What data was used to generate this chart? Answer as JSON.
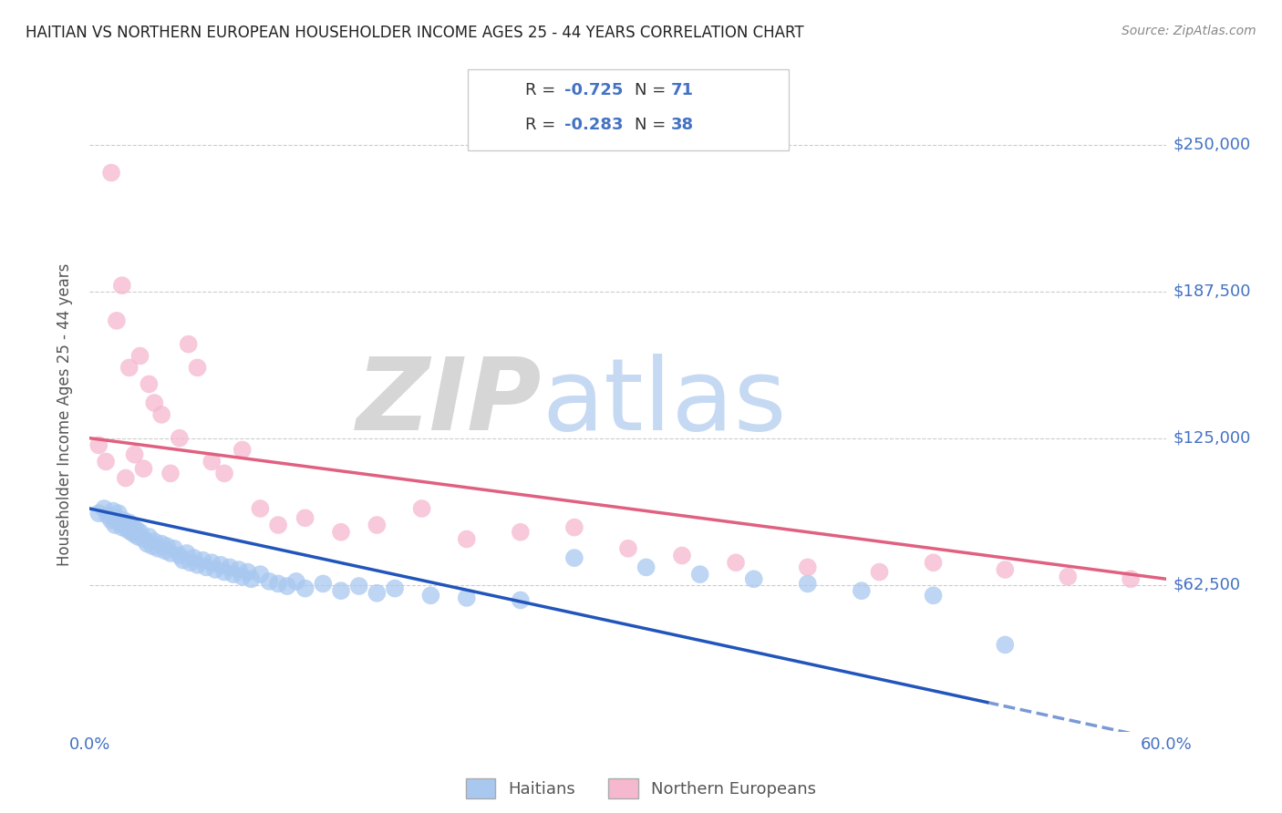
{
  "title": "HAITIAN VS NORTHERN EUROPEAN HOUSEHOLDER INCOME AGES 25 - 44 YEARS CORRELATION CHART",
  "source": "Source: ZipAtlas.com",
  "ylabel": "Householder Income Ages 25 - 44 years",
  "xlim": [
    0,
    0.6
  ],
  "ylim": [
    0,
    270000
  ],
  "yticks": [
    0,
    62500,
    125000,
    187500,
    250000
  ],
  "ytick_labels": [
    "",
    "$62,500",
    "$125,000",
    "$187,500",
    "$250,000"
  ],
  "xticks": [
    0.0,
    0.1,
    0.2,
    0.3,
    0.4,
    0.5,
    0.6
  ],
  "xtick_labels": [
    "0.0%",
    "",
    "",
    "",
    "",
    "",
    "60.0%"
  ],
  "blue_R": -0.725,
  "blue_N": 71,
  "pink_R": -0.283,
  "pink_N": 38,
  "blue_color": "#A8C8F0",
  "pink_color": "#F5B8CE",
  "blue_line_color": "#2255BB",
  "pink_line_color": "#E06080",
  "title_color": "#222222",
  "axis_label_color": "#555555",
  "tick_color": "#4472C4",
  "watermark_zip": "ZIP",
  "watermark_atlas": "atlas",
  "background": "#FFFFFF",
  "blue_line_intercept": 95000,
  "blue_line_slope": -165000,
  "pink_line_intercept": 125000,
  "pink_line_slope": -100000,
  "blue_scatter_x": [
    0.005,
    0.008,
    0.01,
    0.012,
    0.013,
    0.014,
    0.015,
    0.016,
    0.017,
    0.018,
    0.019,
    0.02,
    0.021,
    0.022,
    0.023,
    0.024,
    0.025,
    0.026,
    0.027,
    0.028,
    0.03,
    0.032,
    0.033,
    0.035,
    0.036,
    0.038,
    0.04,
    0.042,
    0.043,
    0.045,
    0.047,
    0.05,
    0.052,
    0.054,
    0.056,
    0.058,
    0.06,
    0.063,
    0.065,
    0.068,
    0.07,
    0.073,
    0.075,
    0.078,
    0.08,
    0.083,
    0.085,
    0.088,
    0.09,
    0.095,
    0.1,
    0.105,
    0.11,
    0.115,
    0.12,
    0.13,
    0.14,
    0.15,
    0.16,
    0.17,
    0.19,
    0.21,
    0.24,
    0.27,
    0.31,
    0.34,
    0.37,
    0.4,
    0.43,
    0.47,
    0.51
  ],
  "blue_scatter_y": [
    93000,
    95000,
    92000,
    90000,
    94000,
    88000,
    91000,
    93000,
    89000,
    87000,
    90000,
    88000,
    86000,
    89000,
    85000,
    87000,
    84000,
    86000,
    83000,
    85000,
    82000,
    80000,
    83000,
    79000,
    81000,
    78000,
    80000,
    77000,
    79000,
    76000,
    78000,
    75000,
    73000,
    76000,
    72000,
    74000,
    71000,
    73000,
    70000,
    72000,
    69000,
    71000,
    68000,
    70000,
    67000,
    69000,
    66000,
    68000,
    65000,
    67000,
    64000,
    63000,
    62000,
    64000,
    61000,
    63000,
    60000,
    62000,
    59000,
    61000,
    58000,
    57000,
    56000,
    74000,
    70000,
    67000,
    65000,
    63000,
    60000,
    58000,
    37000
  ],
  "pink_scatter_x": [
    0.005,
    0.009,
    0.012,
    0.015,
    0.018,
    0.02,
    0.022,
    0.025,
    0.028,
    0.03,
    0.033,
    0.036,
    0.04,
    0.045,
    0.05,
    0.055,
    0.06,
    0.068,
    0.075,
    0.085,
    0.095,
    0.105,
    0.12,
    0.14,
    0.16,
    0.185,
    0.21,
    0.24,
    0.27,
    0.3,
    0.33,
    0.36,
    0.4,
    0.44,
    0.47,
    0.51,
    0.545,
    0.58
  ],
  "pink_scatter_y": [
    122000,
    115000,
    238000,
    175000,
    190000,
    108000,
    155000,
    118000,
    160000,
    112000,
    148000,
    140000,
    135000,
    110000,
    125000,
    165000,
    155000,
    115000,
    110000,
    120000,
    95000,
    88000,
    91000,
    85000,
    88000,
    95000,
    82000,
    85000,
    87000,
    78000,
    75000,
    72000,
    70000,
    68000,
    72000,
    69000,
    66000,
    65000
  ]
}
